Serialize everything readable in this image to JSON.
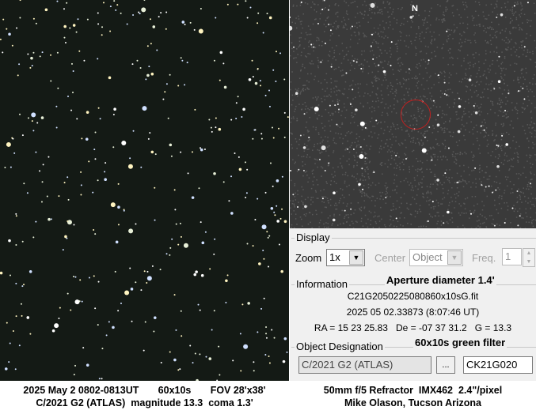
{
  "right_image": {
    "north_label": "N",
    "marker_color": "#c02020"
  },
  "display": {
    "title": "Display",
    "zoom_label": "Zoom",
    "zoom_value": "1x",
    "center_label": "Center",
    "center_value": "Object",
    "freq_label": "Freq.",
    "freq_value": "1"
  },
  "information": {
    "title": "Information",
    "aperture": "Aperture diameter 1.4'",
    "filename": "C21G2050225080860x10sG.fit",
    "date": "2025 05 02.33873 (8:07:46 UT)",
    "coords": "RA = 15 23 25.83   De = -07 37 31.2   G = 13.3"
  },
  "object": {
    "title": "Object Designation",
    "filter_note": "60x10s green filter",
    "name": "C/2021 G2 (ATLAS)",
    "browse_label": "...",
    "code": "CK21G020"
  },
  "caption": {
    "left_line1": "2025 May 2 0802-0813UT       60x10s       FOV 28'x38'",
    "left_line2": "C/2021 G2 (ATLAS)  magnitude 13.3  coma 1.3'",
    "right_line1": "50mm f/5 Refractor  IMX462  2.4\"/pixel",
    "right_line2": "Mike Olason, Tucson Arizona"
  }
}
